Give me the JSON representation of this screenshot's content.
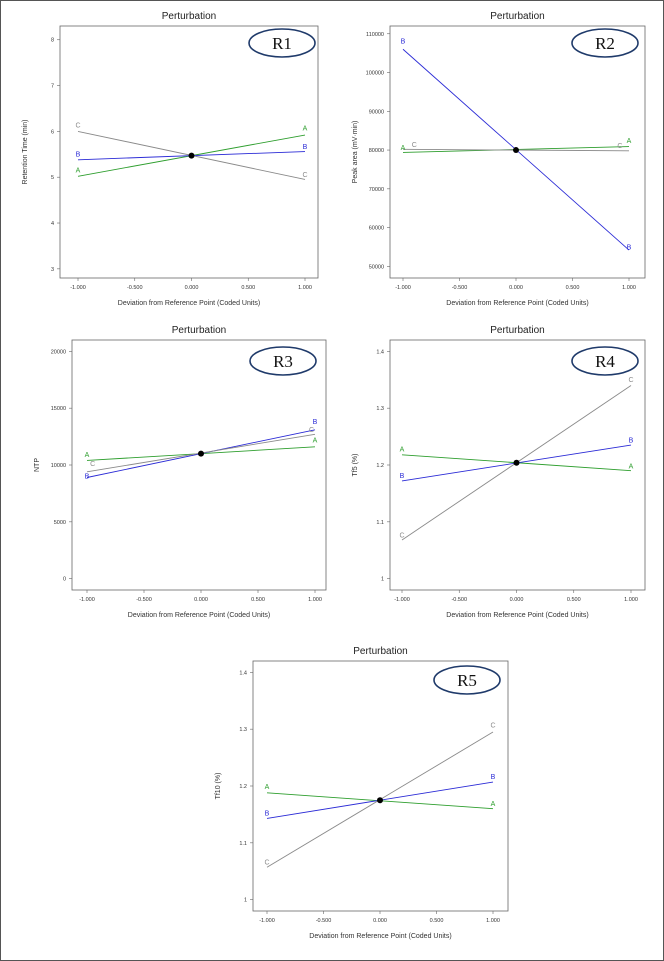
{
  "chart_data": [
    {
      "id": "R1",
      "type": "line",
      "title": "Perturbation",
      "badge": "R1",
      "xlabel": "Deviation from Reference Point (Coded Units)",
      "ylabel": "Retention Time (min)",
      "xlim": [
        -1,
        1
      ],
      "ylim": [
        2.8,
        8.3
      ],
      "xticks": [
        "-1.000",
        "-0.500",
        "0.000",
        "0.500",
        "1.000"
      ],
      "yticks": [
        3,
        4,
        5,
        6,
        7,
        8
      ],
      "colors": {
        "A": "#2e9e2e",
        "B": "#2b2bd6",
        "C": "#8a8a8a"
      },
      "series": [
        {
          "name": "A",
          "x": [
            -1,
            1
          ],
          "y": [
            5.02,
            5.92
          ]
        },
        {
          "name": "B",
          "x": [
            -1,
            1
          ],
          "y": [
            5.38,
            5.56
          ]
        },
        {
          "name": "C",
          "x": [
            -1,
            1
          ],
          "y": [
            6.0,
            4.95
          ]
        }
      ],
      "reference_point": {
        "x": 0,
        "y": 5.47
      },
      "legend_marks": {
        "A": [
          [
            -1,
            5.1
          ],
          [
            1,
            6.02
          ]
        ],
        "B": [
          [
            -1,
            5.45
          ],
          [
            1,
            5.62
          ]
        ],
        "C": [
          [
            -1,
            6.08
          ],
          [
            1,
            5.0
          ]
        ]
      }
    },
    {
      "id": "R2",
      "type": "line",
      "title": "Perturbation",
      "badge": "R2",
      "xlabel": "Deviation from Reference Point (Coded Units)",
      "ylabel": "Peak area (mV·min)",
      "xlim": [
        -1,
        1
      ],
      "ylim": [
        47000,
        112000
      ],
      "xticks": [
        "-1.000",
        "-0.500",
        "0.000",
        "0.500",
        "1.000"
      ],
      "yticks": [
        50000,
        60000,
        70000,
        80000,
        90000,
        100000,
        110000
      ],
      "colors": {
        "A": "#2e9e2e",
        "B": "#2b2bd6",
        "C": "#8a8a8a"
      },
      "series": [
        {
          "name": "A",
          "x": [
            -1,
            1
          ],
          "y": [
            79400,
            80900
          ]
        },
        {
          "name": "B",
          "x": [
            -1,
            1
          ],
          "y": [
            106000,
            54200
          ]
        },
        {
          "name": "C",
          "x": [
            -1,
            1
          ],
          "y": [
            80200,
            79800
          ]
        }
      ],
      "reference_point": {
        "x": 0,
        "y": 80000
      },
      "legend_marks": {
        "A": [
          [
            -1,
            80000
          ],
          [
            1,
            81800
          ]
        ],
        "B": [
          [
            -1,
            107500
          ],
          [
            1,
            54300
          ]
        ],
        "C": [
          [
            -0.9,
            80800
          ],
          [
            0.92,
            80500
          ]
        ]
      }
    },
    {
      "id": "R3",
      "type": "line",
      "title": "Perturbation",
      "badge": "R3",
      "xlabel": "Deviation from Reference Point (Coded Units)",
      "ylabel": "NTP",
      "xlim": [
        -1,
        1
      ],
      "ylim": [
        -1000,
        21000
      ],
      "xticks": [
        "-1.000",
        "-0.500",
        "0.000",
        "0.500",
        "1.000"
      ],
      "yticks": [
        0,
        5000,
        10000,
        15000,
        20000
      ],
      "colors": {
        "A": "#2e9e2e",
        "B": "#2b2bd6",
        "C": "#8a8a8a"
      },
      "series": [
        {
          "name": "A",
          "x": [
            -1,
            1
          ],
          "y": [
            10400,
            11600
          ]
        },
        {
          "name": "B",
          "x": [
            -1,
            1
          ],
          "y": [
            8900,
            13100
          ]
        },
        {
          "name": "C",
          "x": [
            -1,
            1
          ],
          "y": [
            9400,
            12700
          ]
        }
      ],
      "reference_point": {
        "x": 0,
        "y": 11000
      },
      "legend_marks": {
        "A": [
          [
            -1,
            10700
          ],
          [
            1,
            12000
          ]
        ],
        "B": [
          [
            -1,
            8800
          ],
          [
            1,
            13600
          ]
        ],
        "C": [
          [
            -0.95,
            9900
          ],
          [
            0.97,
            12900
          ]
        ]
      }
    },
    {
      "id": "R4",
      "type": "line",
      "title": "Perturbation",
      "badge": "R4",
      "xlabel": "Deviation from Reference Point (Coded Units)",
      "ylabel": "Tf5 (%)",
      "xlim": [
        -1,
        1
      ],
      "ylim": [
        0.98,
        1.42
      ],
      "xticks": [
        "-1.000",
        "-0.500",
        "0.000",
        "0.500",
        "1.000"
      ],
      "yticks": [
        1,
        1.1,
        1.2,
        1.3,
        1.4
      ],
      "ytick_labels": [
        "1",
        "1.1",
        "1.2",
        "1.3",
        "1.4"
      ],
      "colors": {
        "A": "#2e9e2e",
        "B": "#2b2bd6",
        "C": "#8a8a8a"
      },
      "series": [
        {
          "name": "A",
          "x": [
            -1,
            1
          ],
          "y": [
            1.218,
            1.19
          ]
        },
        {
          "name": "B",
          "x": [
            -1,
            1
          ],
          "y": [
            1.172,
            1.235
          ]
        },
        {
          "name": "C",
          "x": [
            -1,
            1
          ],
          "y": [
            1.068,
            1.34
          ]
        }
      ],
      "reference_point": {
        "x": 0,
        "y": 1.204
      },
      "legend_marks": {
        "A": [
          [
            -1,
            1.224
          ],
          [
            1,
            1.194
          ]
        ],
        "B": [
          [
            -1,
            1.177
          ],
          [
            1,
            1.24
          ]
        ],
        "C": [
          [
            -1,
            1.072
          ],
          [
            1,
            1.346
          ]
        ]
      }
    },
    {
      "id": "R5",
      "type": "line",
      "title": "Perturbation",
      "badge": "R5",
      "xlabel": "Deviation from Reference Point (Coded Units)",
      "ylabel": "Tf10 (%)",
      "xlim": [
        -1,
        1
      ],
      "ylim": [
        0.98,
        1.42
      ],
      "xticks": [
        "-1.000",
        "-0.500",
        "0.000",
        "0.500",
        "1.000"
      ],
      "yticks": [
        1,
        1.1,
        1.2,
        1.3,
        1.4
      ],
      "ytick_labels": [
        "1",
        "1.1",
        "1.2",
        "1.3",
        "1.4"
      ],
      "colors": {
        "A": "#2e9e2e",
        "B": "#2b2bd6",
        "C": "#8a8a8a"
      },
      "series": [
        {
          "name": "A",
          "x": [
            -1,
            1
          ],
          "y": [
            1.188,
            1.16
          ]
        },
        {
          "name": "B",
          "x": [
            -1,
            1
          ],
          "y": [
            1.143,
            1.207
          ]
        },
        {
          "name": "C",
          "x": [
            -1,
            1
          ],
          "y": [
            1.057,
            1.295
          ]
        }
      ],
      "reference_point": {
        "x": 0,
        "y": 1.175
      },
      "legend_marks": {
        "A": [
          [
            -1,
            1.195
          ],
          [
            1,
            1.165
          ]
        ],
        "B": [
          [
            -1,
            1.148
          ],
          [
            1,
            1.212
          ]
        ],
        "C": [
          [
            -1,
            1.062
          ],
          [
            1,
            1.303
          ]
        ]
      }
    }
  ]
}
